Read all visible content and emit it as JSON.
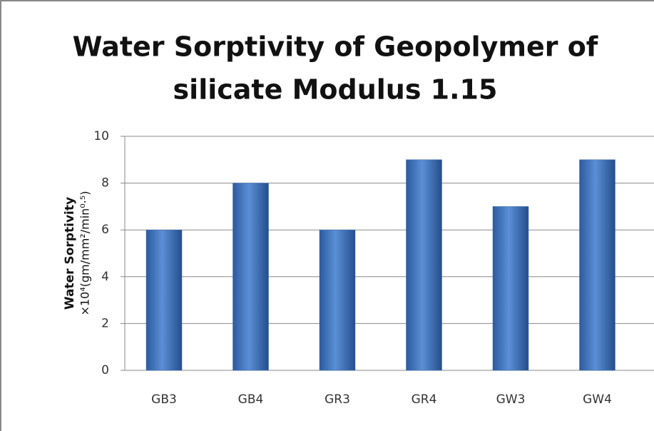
{
  "chart_data": {
    "type": "bar",
    "title": [
      "Water Sorptivity of Geopolymer of",
      "silicate Modulus 1.15"
    ],
    "y_label": [
      "Water Sorptivity",
      "×10⁴(gm/mm²/min⁰·⁵)"
    ],
    "categories": [
      "GB3",
      "GB4",
      "GR3",
      "GR4",
      "GW3",
      "GW4"
    ],
    "values": [
      6,
      8,
      6,
      9,
      7,
      9
    ],
    "color": "#3a6fba",
    "ylim": [
      0,
      10
    ],
    "yticks": [
      0,
      2,
      4,
      6,
      8,
      10
    ],
    "grid": true
  }
}
